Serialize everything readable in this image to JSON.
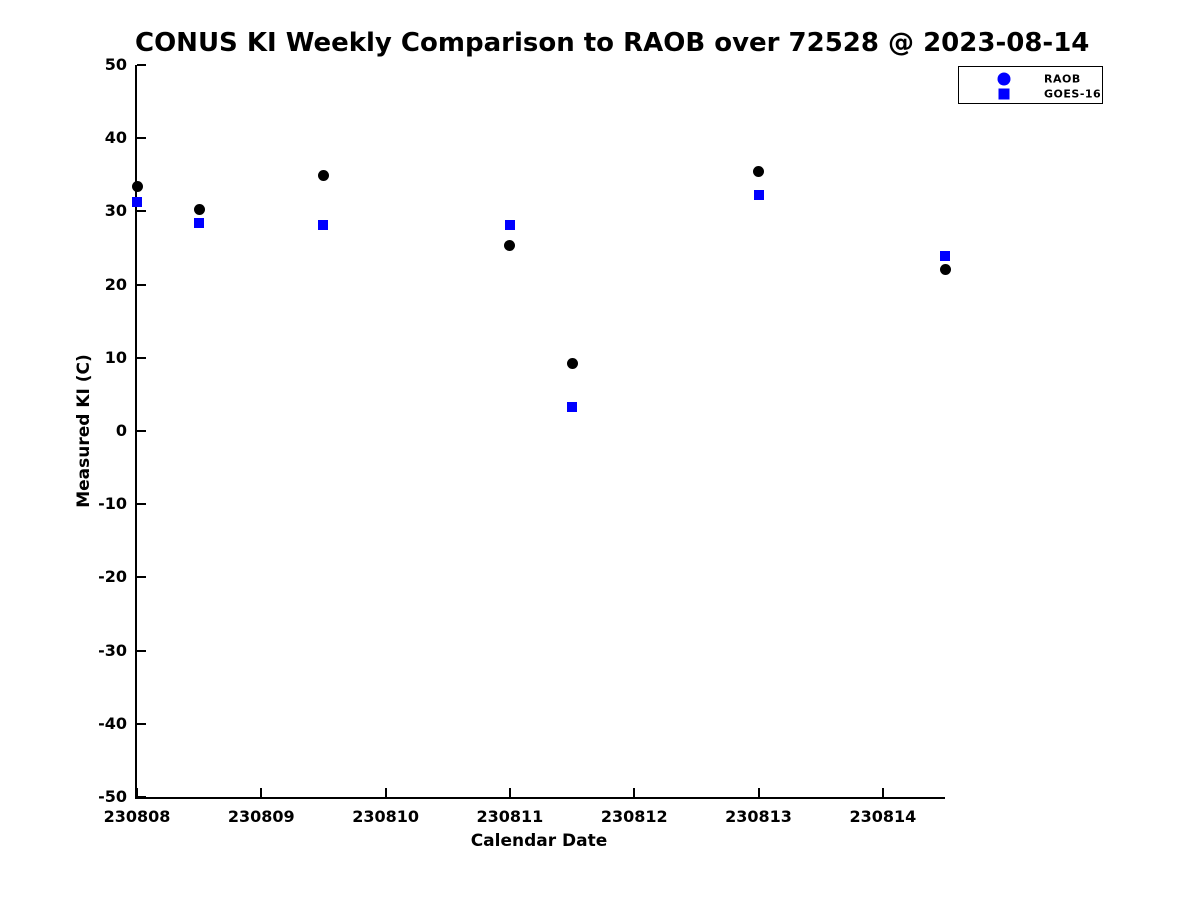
{
  "figure": {
    "title": "CONUS KI Weekly Comparison to RAOB over 72528 @ 2023-08-14",
    "xlabel": "Calendar Date",
    "ylabel": "Measured KI (C)"
  },
  "colors": {
    "raob_points": "#000000",
    "goes16_points": "#0000ff",
    "legend_markers": "#0000ff",
    "axis": "#000000",
    "background": "#ffffff"
  },
  "chart_data": {
    "type": "scatter",
    "title": "CONUS KI Weekly Comparison to RAOB over 72528 @ 2023-08-14",
    "xlabel": "Calendar Date",
    "ylabel": "Measured KI (C)",
    "xlim": [
      230808,
      230814.5
    ],
    "ylim": [
      -50,
      50
    ],
    "x_ticks": [
      230808,
      230809,
      230810,
      230811,
      230812,
      230813,
      230814
    ],
    "y_ticks": [
      50,
      40,
      30,
      20,
      10,
      0,
      -10,
      -20,
      -30,
      -40,
      -50
    ],
    "grid": false,
    "legend_position": "outside-top-right",
    "series": [
      {
        "name": "RAOB",
        "marker": "circle",
        "color": "#000000",
        "legend_color": "#0000ff",
        "x": [
          230808.0,
          230808.5,
          230809.5,
          230811.0,
          230811.5,
          230813.0,
          230814.5
        ],
        "y": [
          33.4,
          30.3,
          34.9,
          25.4,
          9.2,
          35.4,
          22.0
        ]
      },
      {
        "name": "GOES-16",
        "marker": "square",
        "color": "#0000ff",
        "legend_color": "#0000ff",
        "x": [
          230808.0,
          230808.5,
          230809.5,
          230811.0,
          230811.5,
          230813.0,
          230814.5
        ],
        "y": [
          31.3,
          28.4,
          28.2,
          28.2,
          3.3,
          32.3,
          23.9
        ]
      }
    ]
  }
}
